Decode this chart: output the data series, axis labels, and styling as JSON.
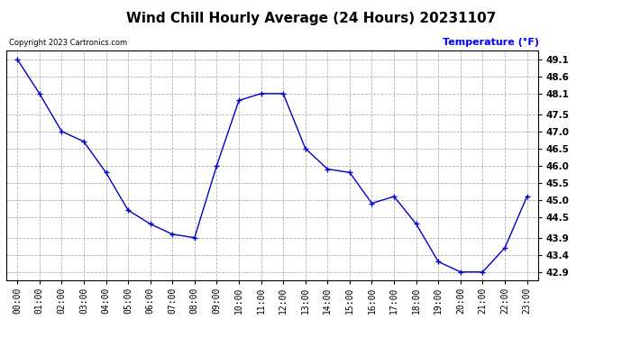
{
  "title": "Wind Chill Hourly Average (24 Hours) 20231107",
  "ylabel": "Temperature (°F)",
  "copyright": "Copyright 2023 Cartronics.com",
  "hours": [
    "00:00",
    "01:00",
    "02:00",
    "03:00",
    "04:00",
    "05:00",
    "06:00",
    "07:00",
    "08:00",
    "09:00",
    "10:00",
    "11:00",
    "12:00",
    "13:00",
    "14:00",
    "15:00",
    "16:00",
    "17:00",
    "18:00",
    "19:00",
    "20:00",
    "21:00",
    "22:00",
    "23:00"
  ],
  "values": [
    49.1,
    48.1,
    47.0,
    46.7,
    45.8,
    44.7,
    44.3,
    44.0,
    43.9,
    46.0,
    47.9,
    48.1,
    48.1,
    46.5,
    45.9,
    45.8,
    44.9,
    45.1,
    44.3,
    43.2,
    42.9,
    42.9,
    43.6,
    45.1
  ],
  "line_color": "#0000cc",
  "marker": "+",
  "ylim_min": 42.65,
  "ylim_max": 49.35,
  "yticks": [
    42.9,
    43.4,
    43.9,
    44.5,
    45.0,
    45.5,
    46.0,
    46.5,
    47.0,
    47.5,
    48.1,
    48.6,
    49.1
  ],
  "background_color": "#ffffff",
  "grid_color": "#b0b0b0",
  "title_fontsize": 11,
  "ylabel_color": "#0000ff",
  "copyright_color": "#000000",
  "tick_fontsize": 7,
  "ytick_fontsize": 7.5
}
